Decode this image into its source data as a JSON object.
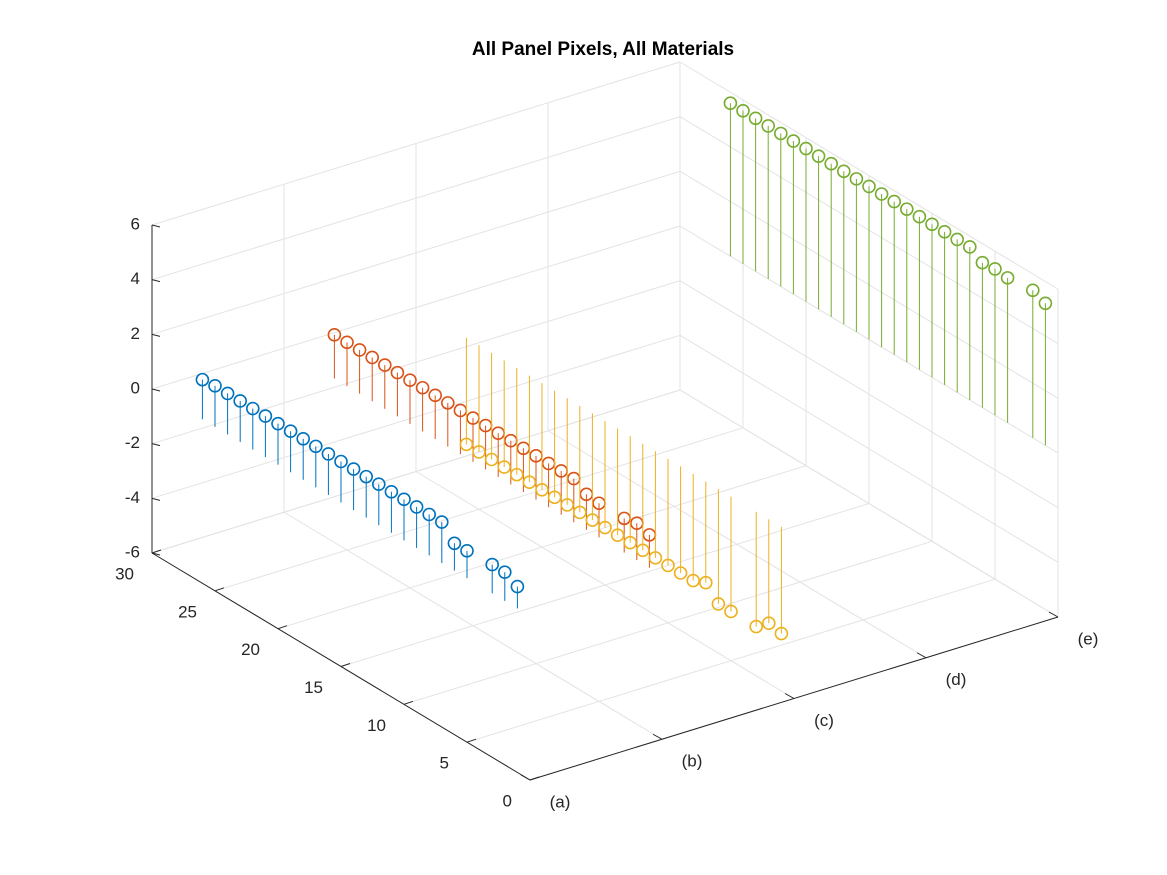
{
  "chart_data": {
    "type": "stem3",
    "title": "All Panel Pixels, All Materials",
    "y": [
      1,
      2,
      3,
      4,
      5,
      6,
      7,
      8,
      9,
      10,
      11,
      12,
      13,
      14,
      15,
      16,
      17,
      18,
      19,
      20,
      21,
      22,
      23,
      24,
      25,
      26
    ],
    "series": [
      {
        "x": 1,
        "color": "#0072bd",
        "values": [
          0.8,
          1.05,
          1.05,
          null,
          1.0,
          1.0,
          1.5,
          1.5,
          1.5,
          1.5,
          1.5,
          1.5,
          1.5,
          1.5,
          1.5,
          1.5,
          1.5,
          1.5,
          1.5,
          1.5,
          1.5,
          1.5,
          1.5,
          1.5,
          1.5,
          1.45
        ]
      },
      {
        "x": 2,
        "color": "#d95319",
        "values": [
          1.2,
          1.35,
          1.25,
          null,
          1.25,
          1.3,
          1.6,
          1.6,
          1.6,
          1.6,
          1.6,
          1.6,
          1.6,
          1.6,
          1.6,
          1.6,
          1.6,
          1.6,
          1.6,
          1.6,
          1.6,
          1.6,
          1.6,
          1.6,
          1.6,
          1.6
        ]
      },
      {
        "x": 3,
        "color": "#edb120",
        "values": [
          -3.9,
          -3.8,
          -4.2,
          null,
          -4.2,
          -4.2,
          -3.7,
          -3.9,
          -3.9,
          -3.9,
          -3.9,
          -3.9,
          -3.9,
          -3.9,
          -3.9,
          -3.9,
          -3.9,
          -3.9,
          -3.9,
          -3.9,
          -3.9,
          -3.9,
          -3.9,
          -3.9,
          -3.9,
          -3.9
        ]
      },
      {
        "x": 5,
        "color": "#77ac30",
        "values": [
          5.2,
          5.4,
          null,
          5.3,
          5.35,
          5.3,
          5.6,
          5.6,
          5.6,
          5.6,
          5.6,
          5.6,
          5.6,
          5.6,
          5.6,
          5.6,
          5.6,
          5.6,
          5.6,
          5.6,
          5.6,
          5.6,
          5.6,
          5.6,
          5.6,
          5.6
        ]
      }
    ],
    "xlim": [
      1,
      5
    ],
    "xticks": [
      {
        "value": 1,
        "label": "(a)"
      },
      {
        "value": 2,
        "label": "(b)"
      },
      {
        "value": 3,
        "label": "(c)"
      },
      {
        "value": 4,
        "label": "(d)"
      },
      {
        "value": 5,
        "label": "(e)"
      }
    ],
    "ylim": [
      0,
      30
    ],
    "yticks": [
      0,
      5,
      10,
      15,
      20,
      25,
      30
    ],
    "zlim": [
      -6,
      6
    ],
    "zticks": [
      -6,
      -4,
      -2,
      0,
      2,
      4,
      6
    ],
    "grid": true
  }
}
